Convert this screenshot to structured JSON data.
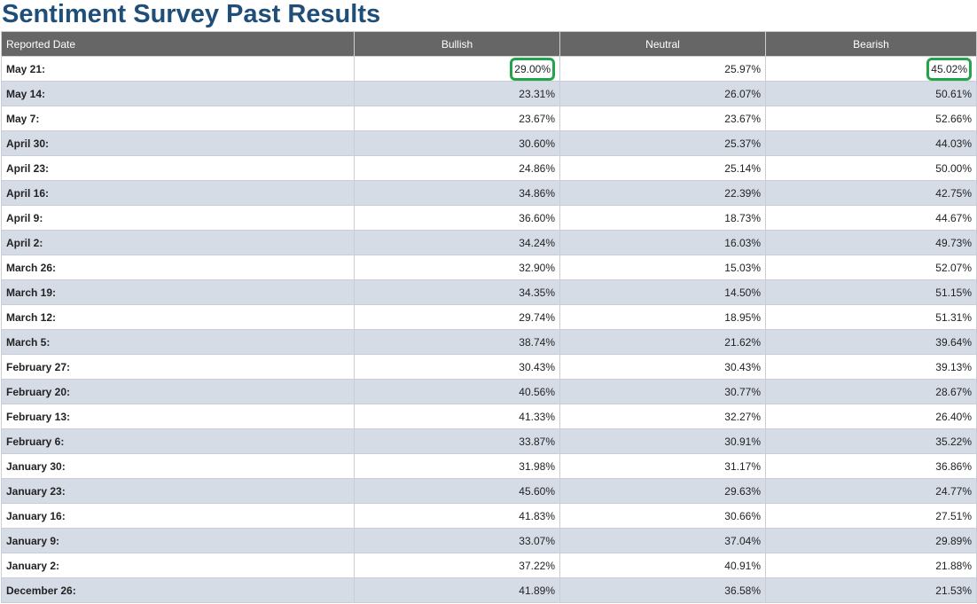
{
  "page": {
    "title": "Sentiment Survey Past Results"
  },
  "table": {
    "headers": [
      "Reported Date",
      "Bullish",
      "Neutral",
      "Bearish"
    ],
    "highlight_color": "#22a54a",
    "rows": [
      {
        "date": "May 21:",
        "bullish": "29.00%",
        "neutral": "25.97%",
        "bearish": "45.02%",
        "highlight_bullish": true,
        "highlight_bearish": true
      },
      {
        "date": "May 14:",
        "bullish": "23.31%",
        "neutral": "26.07%",
        "bearish": "50.61%"
      },
      {
        "date": "May 7:",
        "bullish": "23.67%",
        "neutral": "23.67%",
        "bearish": "52.66%"
      },
      {
        "date": "April 30:",
        "bullish": "30.60%",
        "neutral": "25.37%",
        "bearish": "44.03%"
      },
      {
        "date": "April 23:",
        "bullish": "24.86%",
        "neutral": "25.14%",
        "bearish": "50.00%"
      },
      {
        "date": "April 16:",
        "bullish": "34.86%",
        "neutral": "22.39%",
        "bearish": "42.75%"
      },
      {
        "date": "April 9:",
        "bullish": "36.60%",
        "neutral": "18.73%",
        "bearish": "44.67%"
      },
      {
        "date": "April 2:",
        "bullish": "34.24%",
        "neutral": "16.03%",
        "bearish": "49.73%"
      },
      {
        "date": "March 26:",
        "bullish": "32.90%",
        "neutral": "15.03%",
        "bearish": "52.07%"
      },
      {
        "date": "March 19:",
        "bullish": "34.35%",
        "neutral": "14.50%",
        "bearish": "51.15%"
      },
      {
        "date": "March 12:",
        "bullish": "29.74%",
        "neutral": "18.95%",
        "bearish": "51.31%"
      },
      {
        "date": "March 5:",
        "bullish": "38.74%",
        "neutral": "21.62%",
        "bearish": "39.64%"
      },
      {
        "date": "February 27:",
        "bullish": "30.43%",
        "neutral": "30.43%",
        "bearish": "39.13%"
      },
      {
        "date": "February 20:",
        "bullish": "40.56%",
        "neutral": "30.77%",
        "bearish": "28.67%"
      },
      {
        "date": "February 13:",
        "bullish": "41.33%",
        "neutral": "32.27%",
        "bearish": "26.40%"
      },
      {
        "date": "February 6:",
        "bullish": "33.87%",
        "neutral": "30.91%",
        "bearish": "35.22%"
      },
      {
        "date": "January 30:",
        "bullish": "31.98%",
        "neutral": "31.17%",
        "bearish": "36.86%"
      },
      {
        "date": "January 23:",
        "bullish": "45.60%",
        "neutral": "29.63%",
        "bearish": "24.77%"
      },
      {
        "date": "January 16:",
        "bullish": "41.83%",
        "neutral": "30.66%",
        "bearish": "27.51%"
      },
      {
        "date": "January 9:",
        "bullish": "33.07%",
        "neutral": "37.04%",
        "bearish": "29.89%"
      },
      {
        "date": "January 2:",
        "bullish": "37.22%",
        "neutral": "40.91%",
        "bearish": "21.88%"
      },
      {
        "date": "December 26:",
        "bullish": "41.89%",
        "neutral": "36.58%",
        "bearish": "21.53%"
      }
    ]
  }
}
